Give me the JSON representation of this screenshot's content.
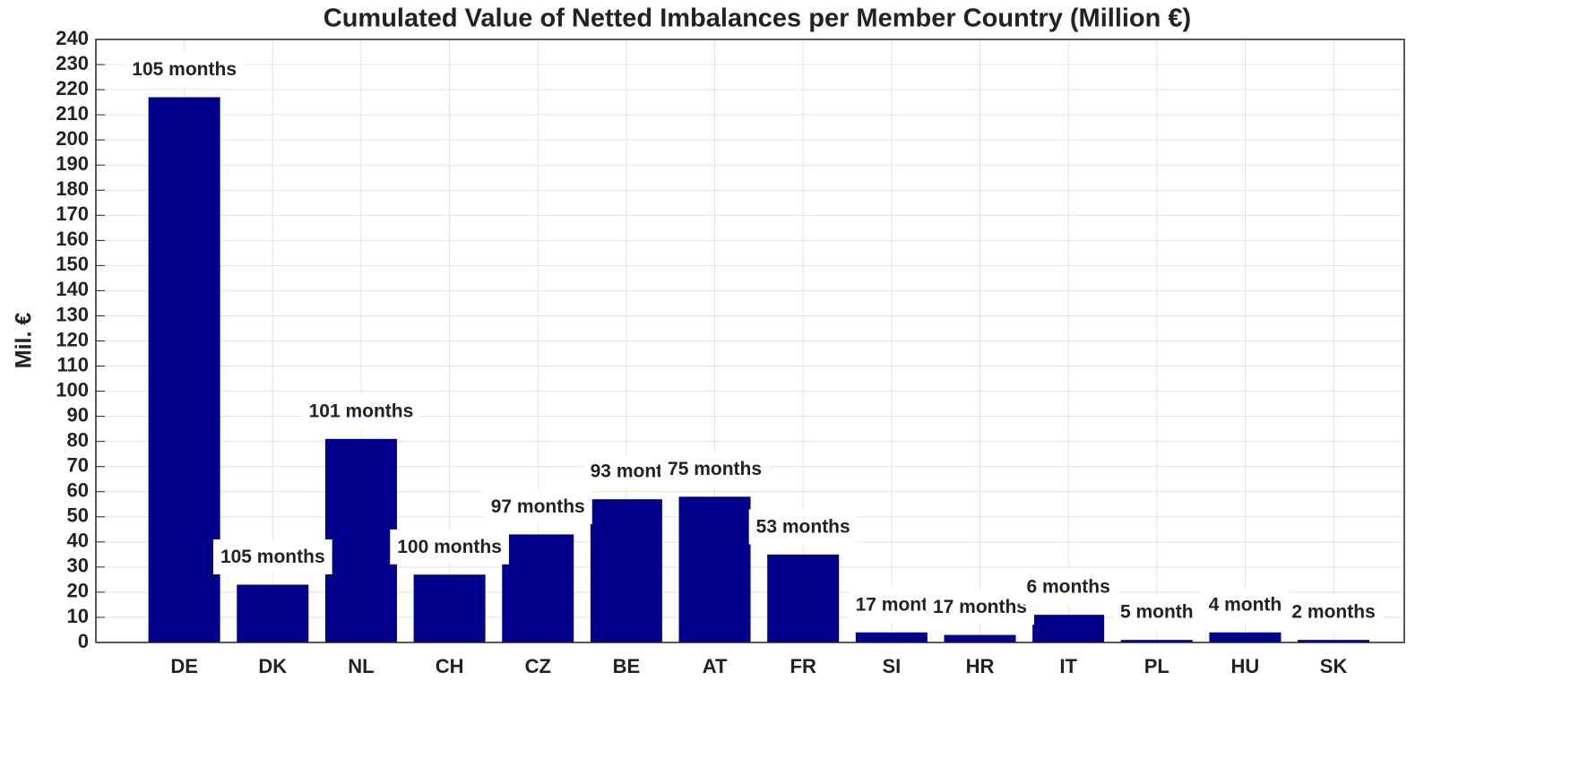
{
  "chart_data": {
    "type": "bar",
    "title": "Cumulated Value of Netted Imbalances per Member Country (Million €)",
    "y_label": "Mil. €",
    "categories": [
      "DE",
      "DK",
      "NL",
      "CH",
      "CZ",
      "BE",
      "AT",
      "FR",
      "SI",
      "HR",
      "IT",
      "PL",
      "HU",
      "SK"
    ],
    "values": [
      217,
      23,
      81,
      27,
      43,
      57,
      58,
      35,
      4,
      3,
      11,
      1,
      4,
      1
    ],
    "annotations": [
      "105 months",
      "105 months",
      "101 months",
      "100 months",
      "97 months",
      "93 mont",
      "75 months",
      "53 months",
      "17 mont",
      "17 months",
      "6 months",
      "5 month",
      "4 month",
      "2 months"
    ],
    "color": "#00008b",
    "ylim": [
      0,
      240
    ],
    "yticks": [
      0,
      10,
      20,
      30,
      40,
      50,
      60,
      70,
      80,
      90,
      100,
      110,
      120,
      130,
      140,
      150,
      160,
      170,
      180,
      190,
      200,
      210,
      220,
      230,
      240
    ],
    "grid": true
  }
}
